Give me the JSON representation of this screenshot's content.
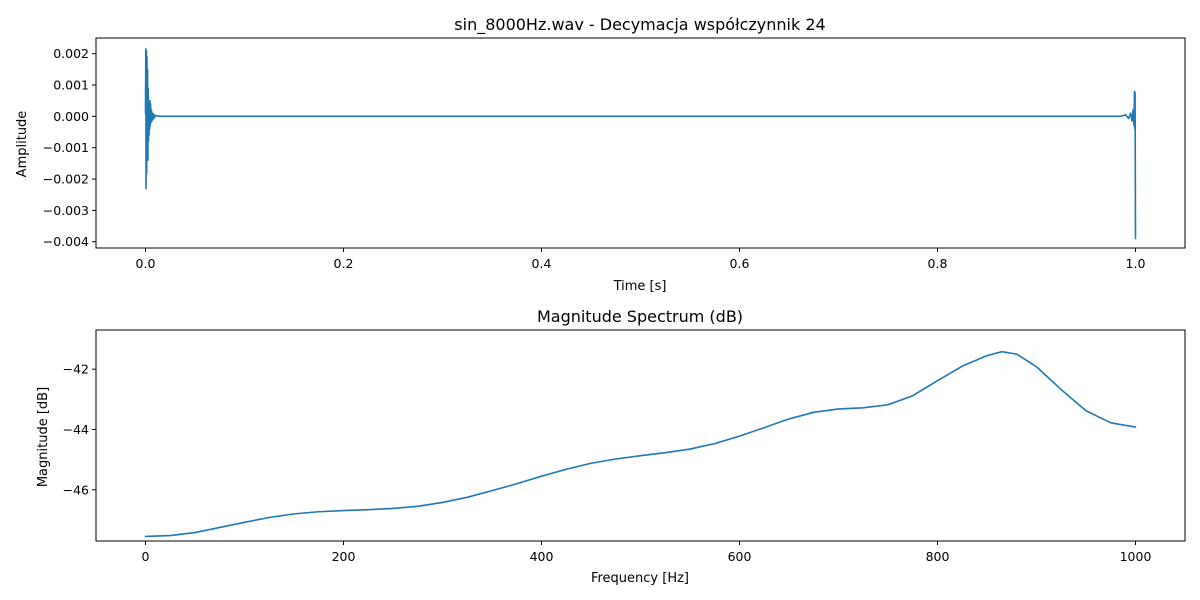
{
  "chart_data": [
    {
      "type": "line",
      "title": "sin_8000Hz.wav - Decymacja współczynnik 24",
      "xlabel": "Time [s]",
      "ylabel": "Amplitude",
      "xlim": [
        -0.05,
        1.05
      ],
      "ylim": [
        -0.0042,
        0.0025
      ],
      "xticks": [
        0.0,
        0.2,
        0.4,
        0.6,
        0.8,
        1.0
      ],
      "xtick_labels": [
        "0.0",
        "0.2",
        "0.4",
        "0.6",
        "0.8",
        "1.0"
      ],
      "yticks": [
        0.002,
        0.001,
        0.0,
        -0.001,
        -0.002,
        -0.003,
        -0.004
      ],
      "ytick_labels": [
        "0.002",
        "0.001",
        "0.000",
        "−0.001",
        "−0.002",
        "−0.003",
        "−0.004"
      ],
      "grid": false,
      "series": [
        {
          "color": "#1f77b4",
          "x": [
            0.0,
            0.0003,
            0.0006,
            0.0009,
            0.0012,
            0.0015,
            0.0018,
            0.0021,
            0.0024,
            0.0027,
            0.003,
            0.0033,
            0.0036,
            0.0039,
            0.0042,
            0.0045,
            0.0048,
            0.0051,
            0.0055,
            0.006,
            0.0065,
            0.007,
            0.0075,
            0.008,
            0.009,
            0.01,
            0.012,
            0.015,
            0.02,
            0.1,
            0.3,
            0.5,
            0.7,
            0.9,
            0.985,
            0.99,
            0.993,
            0.995,
            0.9965,
            0.9975,
            0.9985,
            0.999,
            0.9993,
            0.9996,
            1.0
          ],
          "y": [
            0.0001,
            0.00215,
            -0.0023,
            0.0021,
            -0.0018,
            0.0019,
            -0.0012,
            0.0015,
            -0.0014,
            0.0009,
            -0.0008,
            0.0005,
            -0.0006,
            0.0003,
            -0.0004,
            0.0005,
            -0.0003,
            0.0004,
            -0.0002,
            0.0002,
            -0.00015,
            0.0001,
            -0.0001,
            8e-05,
            -5e-05,
            3e-05,
            1e-05,
            0.0,
            0.0,
            0.0,
            0.0,
            0.0,
            0.0,
            0.0,
            0.0,
            5e-05,
            -7e-05,
            0.0001,
            -0.00015,
            0.0002,
            -0.0003,
            0.0008,
            -0.0004,
            0.00075,
            -0.0039
          ]
        }
      ]
    },
    {
      "type": "line",
      "title": "Magnitude Spectrum (dB)",
      "xlabel": "Frequency [Hz]",
      "ylabel": "Magnitude [dB]",
      "xlim": [
        -50,
        1050
      ],
      "ylim": [
        -47.7,
        -40.7
      ],
      "xticks": [
        0,
        200,
        400,
        600,
        800,
        1000
      ],
      "xtick_labels": [
        "0",
        "200",
        "400",
        "600",
        "800",
        "1000"
      ],
      "yticks": [
        -42,
        -44,
        -46
      ],
      "ytick_labels": [
        "−42",
        "−44",
        "−46"
      ],
      "grid": false,
      "series": [
        {
          "color": "#1f77b4",
          "x": [
            0,
            25,
            50,
            75,
            100,
            125,
            150,
            175,
            200,
            225,
            250,
            275,
            300,
            325,
            350,
            375,
            400,
            425,
            450,
            475,
            500,
            525,
            550,
            575,
            600,
            625,
            650,
            675,
            700,
            725,
            750,
            775,
            800,
            825,
            850,
            865,
            880,
            900,
            925,
            950,
            975,
            1000
          ],
          "y": [
            -47.55,
            -47.52,
            -47.42,
            -47.25,
            -47.08,
            -46.92,
            -46.8,
            -46.73,
            -46.69,
            -46.66,
            -46.62,
            -46.55,
            -46.42,
            -46.25,
            -46.03,
            -45.8,
            -45.55,
            -45.32,
            -45.12,
            -44.98,
            -44.87,
            -44.77,
            -44.65,
            -44.47,
            -44.22,
            -43.94,
            -43.65,
            -43.43,
            -43.32,
            -43.28,
            -43.18,
            -42.88,
            -42.38,
            -41.9,
            -41.55,
            -41.42,
            -41.5,
            -41.92,
            -42.68,
            -43.38,
            -43.78,
            -43.92
          ]
        }
      ]
    }
  ]
}
